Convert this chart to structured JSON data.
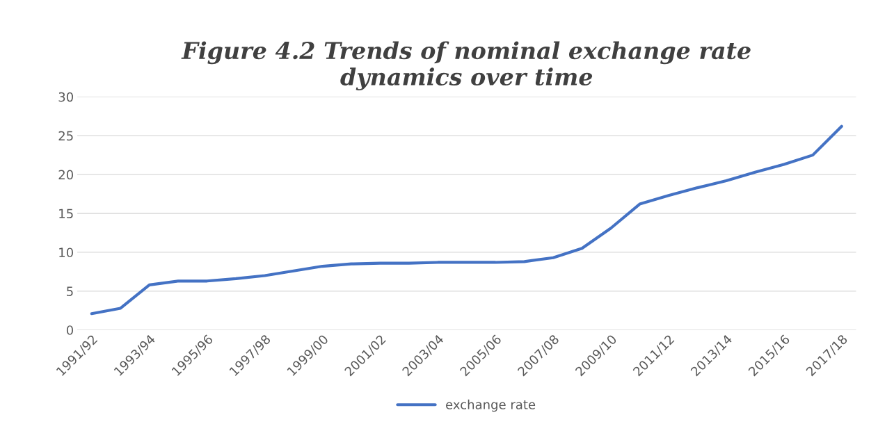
{
  "chart_data": {
    "type": "line",
    "title": "Figure 4.2 Trends of nominal exchange rate\ndynamics over time",
    "categories": [
      "1991/92",
      null,
      "1993/94",
      null,
      "1995/96",
      null,
      "1997/98",
      null,
      "1999/00",
      null,
      "2001/02",
      null,
      "2003/04",
      null,
      "2005/06",
      null,
      "2007/08",
      null,
      "2009/10",
      null,
      "2011/12",
      null,
      "2013/14",
      null,
      "2015/16",
      null,
      "2017/18"
    ],
    "series": [
      {
        "name": "exchange rate",
        "color": "#4472c4",
        "values": [
          2.1,
          2.8,
          5.8,
          6.3,
          6.3,
          6.6,
          7.0,
          7.6,
          8.2,
          8.5,
          8.6,
          8.6,
          8.7,
          8.7,
          8.7,
          8.8,
          9.3,
          10.5,
          13.1,
          16.2,
          17.3,
          18.3,
          19.2,
          20.3,
          21.3,
          22.5,
          26.2
        ]
      }
    ],
    "ylim": [
      0,
      30
    ],
    "yticks": [
      0,
      5,
      10,
      15,
      20,
      25,
      30
    ],
    "grid": "y",
    "legend": "bottom",
    "marker": "none",
    "line_style": "solid"
  }
}
